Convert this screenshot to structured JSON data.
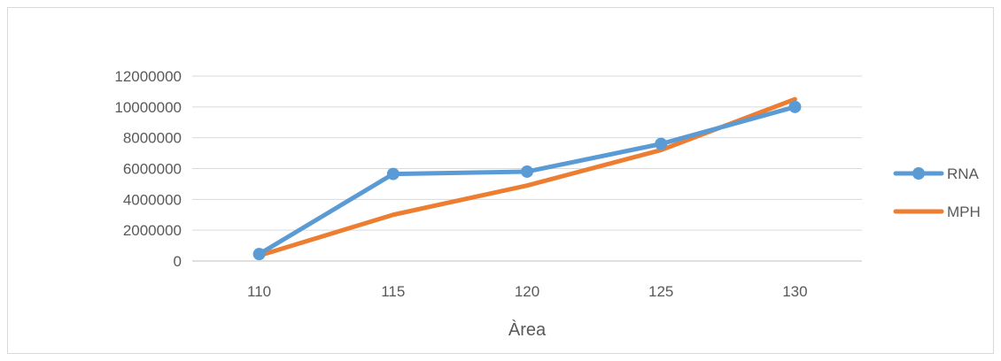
{
  "chart_data": {
    "type": "line",
    "title": "",
    "xlabel": "Àrea",
    "ylabel": "",
    "categories": [
      "110",
      "115",
      "120",
      "125",
      "130"
    ],
    "ylim": [
      0,
      12000000
    ],
    "yticks": [
      0,
      2000000,
      4000000,
      6000000,
      8000000,
      10000000,
      12000000
    ],
    "ytick_labels": [
      "0",
      "2000000",
      "4000000",
      "6000000",
      "8000000",
      "10000000",
      "12000000"
    ],
    "grid": true,
    "legend_position": "right",
    "series": [
      {
        "name": "RNA",
        "values": [
          450000,
          5650000,
          5800000,
          7600000,
          10000000
        ],
        "color": "#5B9BD5",
        "markers": true
      },
      {
        "name": "MPH",
        "values": [
          350000,
          3000000,
          4900000,
          7200000,
          10500000
        ],
        "color": "#ED7D31",
        "markers": false
      }
    ]
  }
}
